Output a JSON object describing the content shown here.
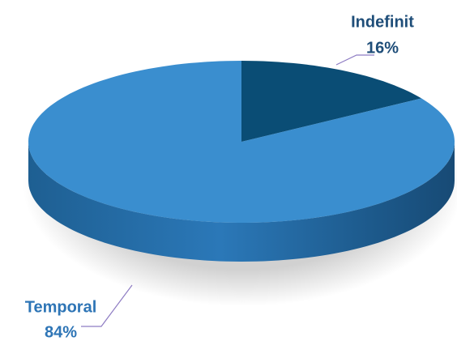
{
  "chart_data": {
    "type": "pie",
    "pie_3d": true,
    "categories": [
      "Indefinit",
      "Temporal"
    ],
    "values": [
      16,
      84
    ],
    "value_labels": [
      "16%",
      "84%"
    ],
    "colors": [
      "#0a4d75",
      "#3a8ecf"
    ],
    "label_colors": [
      "#1f4e79",
      "#2e75b6"
    ]
  }
}
